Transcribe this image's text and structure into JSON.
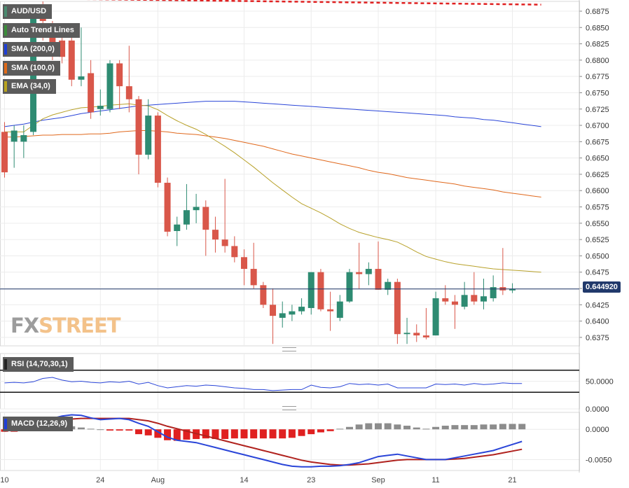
{
  "legends": {
    "main": [
      {
        "label": "AUD/USD",
        "color": "#4a8a6f"
      },
      {
        "label": "Auto Trend Lines",
        "color": "#3a8c3a"
      },
      {
        "label": "SMA (200,0)",
        "color": "#1f3fd6"
      },
      {
        "label": "SMA (100,0)",
        "color": "#e06a18"
      },
      {
        "label": "EMA (34,0)",
        "color": "#b9a31e"
      }
    ],
    "rsi": {
      "label": "RSI (14,70,30,1)",
      "color": "#222222"
    },
    "macd": {
      "label": "MACD (12,26,9)",
      "color": "#1f3fd6"
    }
  },
  "logo": {
    "part1": "FX",
    "part2": "STREET"
  },
  "current_price_label": "0.644920",
  "colors": {
    "up": "#2e8b72",
    "down": "#d9574a",
    "sma200": "#2a45d8",
    "sma100": "#e0681c",
    "ema34": "#b8a12a",
    "trend": "#e02020",
    "rsi_line": "#2a45d8",
    "macd_line": "#2a45d8",
    "signal_line": "#b0221e",
    "hist_neg": "#e02020",
    "hist_pos": "#8c8c8c",
    "price_line": "#21396b"
  },
  "chart_data": [
    {
      "type": "candlestick",
      "title": "AUD/USD",
      "x_tick_labels": [
        {
          "index": 0,
          "label": "10"
        },
        {
          "index": 10,
          "label": "24"
        },
        {
          "index": 16,
          "label": "Aug"
        },
        {
          "index": 25,
          "label": "14"
        },
        {
          "index": 32,
          "label": "23"
        },
        {
          "index": 39,
          "label": "Sep"
        },
        {
          "index": 45,
          "label": "11"
        },
        {
          "index": 53,
          "label": "21"
        }
      ],
      "y_ticks": [
        "0.6375",
        "0.6400",
        "0.6425",
        "0.6450",
        "0.6475",
        "0.6500",
        "0.6525",
        "0.6550",
        "0.6575",
        "0.6600",
        "0.6625",
        "0.6650",
        "0.6675",
        "0.6700",
        "0.6725",
        "0.6750",
        "0.6775",
        "0.6800",
        "0.6825",
        "0.6850",
        "0.6875"
      ],
      "ylim": [
        0.6362,
        0.689
      ],
      "current_price": 0.64492,
      "candles": [
        {
          "o": 0.669,
          "h": 0.6705,
          "l": 0.662,
          "c": 0.6628
        },
        {
          "o": 0.6675,
          "h": 0.67,
          "l": 0.6635,
          "c": 0.6692
        },
        {
          "o": 0.6675,
          "h": 0.67,
          "l": 0.665,
          "c": 0.6685
        },
        {
          "o": 0.669,
          "h": 0.688,
          "l": 0.6685,
          "c": 0.6875
        },
        {
          "o": 0.6875,
          "h": 0.689,
          "l": 0.683,
          "c": 0.686
        },
        {
          "o": 0.685,
          "h": 0.686,
          "l": 0.68,
          "c": 0.6815
        },
        {
          "o": 0.683,
          "h": 0.684,
          "l": 0.6795,
          "c": 0.6805
        },
        {
          "o": 0.683,
          "h": 0.684,
          "l": 0.676,
          "c": 0.677
        },
        {
          "o": 0.677,
          "h": 0.685,
          "l": 0.676,
          "c": 0.6775
        },
        {
          "o": 0.678,
          "h": 0.68,
          "l": 0.671,
          "c": 0.672
        },
        {
          "o": 0.6725,
          "h": 0.6755,
          "l": 0.6715,
          "c": 0.673
        },
        {
          "o": 0.6725,
          "h": 0.68,
          "l": 0.672,
          "c": 0.6795
        },
        {
          "o": 0.6795,
          "h": 0.68,
          "l": 0.6725,
          "c": 0.676
        },
        {
          "o": 0.676,
          "h": 0.6822,
          "l": 0.672,
          "c": 0.674
        },
        {
          "o": 0.674,
          "h": 0.6745,
          "l": 0.6625,
          "c": 0.6655
        },
        {
          "o": 0.6655,
          "h": 0.674,
          "l": 0.6648,
          "c": 0.6715
        },
        {
          "o": 0.6715,
          "h": 0.672,
          "l": 0.6605,
          "c": 0.6612
        },
        {
          "o": 0.6612,
          "h": 0.662,
          "l": 0.653,
          "c": 0.6537
        },
        {
          "o": 0.6538,
          "h": 0.656,
          "l": 0.6515,
          "c": 0.6548
        },
        {
          "o": 0.6548,
          "h": 0.661,
          "l": 0.654,
          "c": 0.657
        },
        {
          "o": 0.657,
          "h": 0.6595,
          "l": 0.655,
          "c": 0.6575
        },
        {
          "o": 0.6575,
          "h": 0.6585,
          "l": 0.65,
          "c": 0.654
        },
        {
          "o": 0.654,
          "h": 0.656,
          "l": 0.6505,
          "c": 0.6525
        },
        {
          "o": 0.6525,
          "h": 0.6618,
          "l": 0.6505,
          "c": 0.6515
        },
        {
          "o": 0.6515,
          "h": 0.653,
          "l": 0.649,
          "c": 0.6498
        },
        {
          "o": 0.6498,
          "h": 0.651,
          "l": 0.6455,
          "c": 0.648
        },
        {
          "o": 0.648,
          "h": 0.652,
          "l": 0.645,
          "c": 0.6455
        },
        {
          "o": 0.6455,
          "h": 0.646,
          "l": 0.642,
          "c": 0.6425
        },
        {
          "o": 0.6425,
          "h": 0.645,
          "l": 0.6365,
          "c": 0.6408
        },
        {
          "o": 0.6405,
          "h": 0.643,
          "l": 0.639,
          "c": 0.6412
        },
        {
          "o": 0.641,
          "h": 0.6425,
          "l": 0.64,
          "c": 0.6415
        },
        {
          "o": 0.6415,
          "h": 0.6435,
          "l": 0.641,
          "c": 0.6422
        },
        {
          "o": 0.642,
          "h": 0.6475,
          "l": 0.641,
          "c": 0.6475
        },
        {
          "o": 0.6475,
          "h": 0.648,
          "l": 0.6415,
          "c": 0.6418
        },
        {
          "o": 0.6418,
          "h": 0.6445,
          "l": 0.6385,
          "c": 0.6415
        },
        {
          "o": 0.6405,
          "h": 0.644,
          "l": 0.64,
          "c": 0.643
        },
        {
          "o": 0.643,
          "h": 0.648,
          "l": 0.6428,
          "c": 0.6475
        },
        {
          "o": 0.6475,
          "h": 0.652,
          "l": 0.645,
          "c": 0.6472
        },
        {
          "o": 0.6472,
          "h": 0.649,
          "l": 0.6455,
          "c": 0.648
        },
        {
          "o": 0.648,
          "h": 0.6522,
          "l": 0.6448,
          "c": 0.6448
        },
        {
          "o": 0.6448,
          "h": 0.6465,
          "l": 0.644,
          "c": 0.646
        },
        {
          "o": 0.646,
          "h": 0.6465,
          "l": 0.6365,
          "c": 0.638
        },
        {
          "o": 0.638,
          "h": 0.6405,
          "l": 0.6365,
          "c": 0.6382
        },
        {
          "o": 0.6382,
          "h": 0.6395,
          "l": 0.6368,
          "c": 0.6378
        },
        {
          "o": 0.6378,
          "h": 0.642,
          "l": 0.6372,
          "c": 0.6375
        },
        {
          "o": 0.6378,
          "h": 0.6445,
          "l": 0.6378,
          "c": 0.6435
        },
        {
          "o": 0.6435,
          "h": 0.6455,
          "l": 0.6425,
          "c": 0.643
        },
        {
          "o": 0.643,
          "h": 0.644,
          "l": 0.6388,
          "c": 0.6425
        },
        {
          "o": 0.6422,
          "h": 0.646,
          "l": 0.6418,
          "c": 0.644
        },
        {
          "o": 0.644,
          "h": 0.6475,
          "l": 0.6425,
          "c": 0.643
        },
        {
          "o": 0.643,
          "h": 0.6465,
          "l": 0.6418,
          "c": 0.6438
        },
        {
          "o": 0.6435,
          "h": 0.647,
          "l": 0.643,
          "c": 0.6452
        },
        {
          "o": 0.6452,
          "h": 0.6512,
          "l": 0.644,
          "c": 0.6447
        },
        {
          "o": 0.6447,
          "h": 0.6458,
          "l": 0.6443,
          "c": 0.6449
        }
      ],
      "sma200": [
        0.6698,
        0.67,
        0.6702,
        0.6705,
        0.6708,
        0.671,
        0.6712,
        0.6715,
        0.6718,
        0.672,
        0.6722,
        0.6724,
        0.6726,
        0.6728,
        0.673,
        0.6731,
        0.6732,
        0.6733,
        0.6734,
        0.6735,
        0.6736,
        0.6737,
        0.6737,
        0.6737,
        0.6737,
        0.6736,
        0.6735,
        0.6734,
        0.6733,
        0.6732,
        0.6731,
        0.673,
        0.6729,
        0.6728,
        0.6727,
        0.6726,
        0.6725,
        0.6724,
        0.6723,
        0.6722,
        0.6721,
        0.672,
        0.6719,
        0.6718,
        0.6717,
        0.6716,
        0.6715,
        0.6713,
        0.6712,
        0.6711,
        0.6709,
        0.6708,
        0.6706,
        0.6704,
        0.6702,
        0.67,
        0.6698
      ],
      "sma100": [
        0.6682,
        0.6682,
        0.6683,
        0.6684,
        0.6685,
        0.6685,
        0.6686,
        0.6686,
        0.6686,
        0.6687,
        0.6687,
        0.6688,
        0.669,
        0.6691,
        0.6692,
        0.6692,
        0.6691,
        0.669,
        0.6688,
        0.6687,
        0.6686,
        0.6684,
        0.6682,
        0.668,
        0.6677,
        0.6674,
        0.6671,
        0.6668,
        0.6664,
        0.666,
        0.6656,
        0.6653,
        0.665,
        0.6647,
        0.6644,
        0.6641,
        0.6638,
        0.6635,
        0.6631,
        0.6628,
        0.6626,
        0.6623,
        0.662,
        0.6618,
        0.6616,
        0.6614,
        0.6612,
        0.661,
        0.6607,
        0.6605,
        0.6603,
        0.6601,
        0.6598,
        0.6596,
        0.6594,
        0.6592,
        0.659
      ],
      "ema34": [
        0.669,
        0.669,
        0.669,
        0.67,
        0.671,
        0.6716,
        0.672,
        0.6724,
        0.6727,
        0.6728,
        0.6729,
        0.6731,
        0.6732,
        0.6733,
        0.6731,
        0.673,
        0.6724,
        0.6715,
        0.6707,
        0.67,
        0.6694,
        0.6686,
        0.6677,
        0.6668,
        0.6658,
        0.6647,
        0.6636,
        0.6624,
        0.6612,
        0.6601,
        0.659,
        0.658,
        0.6573,
        0.6566,
        0.6558,
        0.6549,
        0.6542,
        0.6536,
        0.6532,
        0.6528,
        0.6525,
        0.6521,
        0.6514,
        0.6506,
        0.6499,
        0.6495,
        0.6491,
        0.6488,
        0.6486,
        0.6484,
        0.6482,
        0.648,
        0.6479,
        0.6478,
        0.6477,
        0.6476,
        0.6475
      ],
      "trend_line": [
        [
          0,
          0.6895
        ],
        [
          56,
          0.6885
        ]
      ]
    },
    {
      "type": "line",
      "title": "RSI (14,70,30,1)",
      "y_ticks": [
        "50.0000",
        "0.0000"
      ],
      "ylim": [
        0,
        100
      ],
      "levels": [
        70,
        30
      ],
      "rsi": [
        47,
        48,
        47,
        49,
        55,
        57,
        52,
        49,
        50,
        48,
        47,
        49,
        48,
        50,
        45,
        48,
        42,
        38,
        40,
        42,
        41,
        43,
        42,
        40,
        38,
        37,
        35,
        35,
        33,
        34,
        35,
        35,
        43,
        39,
        38,
        40,
        46,
        44,
        45,
        43,
        45,
        38,
        38,
        38,
        38,
        45,
        44,
        45,
        43,
        46,
        44,
        45,
        47,
        46,
        46
      ]
    },
    {
      "type": "bar",
      "title": "MACD (12,26,9)",
      "y_ticks": [
        "0.0000",
        "-0.0050"
      ],
      "ylim": [
        -0.0068,
        0.0028
      ],
      "macd": [
        -0.0002,
        0.0002,
        0.0006,
        0.001,
        0.0014,
        0.0018,
        0.0022,
        0.0024,
        0.0023,
        0.0019,
        0.0016,
        0.0017,
        0.0018,
        0.0016,
        0.001,
        0.0005,
        -0.0004,
        -0.0013,
        -0.0018,
        -0.002,
        -0.0022,
        -0.0026,
        -0.003,
        -0.0034,
        -0.0038,
        -0.0042,
        -0.0046,
        -0.005,
        -0.0054,
        -0.0058,
        -0.0061,
        -0.0062,
        -0.0062,
        -0.0061,
        -0.0061,
        -0.006,
        -0.0058,
        -0.0055,
        -0.005,
        -0.0045,
        -0.0043,
        -0.0041,
        -0.0044,
        -0.0047,
        -0.005,
        -0.005,
        -0.005,
        -0.0047,
        -0.0044,
        -0.0041,
        -0.0038,
        -0.0035,
        -0.003,
        -0.0025,
        -0.002
      ],
      "signal": [
        -0.0003,
        -0.0001,
        0.0002,
        0.0005,
        0.0008,
        0.0011,
        0.0014,
        0.0017,
        0.0018,
        0.0018,
        0.0018,
        0.0018,
        0.0018,
        0.0018,
        0.0016,
        0.0014,
        0.001,
        0.0005,
        0.0001,
        -0.0003,
        -0.0007,
        -0.0011,
        -0.0015,
        -0.0019,
        -0.0023,
        -0.0027,
        -0.0031,
        -0.0035,
        -0.0039,
        -0.0043,
        -0.0047,
        -0.0051,
        -0.0054,
        -0.0056,
        -0.0058,
        -0.0059,
        -0.0059,
        -0.0058,
        -0.0057,
        -0.0055,
        -0.0053,
        -0.0051,
        -0.005,
        -0.005,
        -0.005,
        -0.005,
        -0.005,
        -0.0049,
        -0.0048,
        -0.0046,
        -0.0044,
        -0.0042,
        -0.0039,
        -0.0036,
        -0.0033
      ],
      "histogram": [
        -0.0004,
        -0.0004,
        0.0001,
        0.0006,
        0.0006,
        0.0006,
        0.0006,
        0.0005,
        0.0003,
        0.0001,
        0.0,
        -0.0002,
        -0.0002,
        -0.0002,
        -0.0008,
        -0.001,
        -0.0014,
        -0.0018,
        -0.0019,
        -0.0017,
        -0.0016,
        -0.0015,
        -0.0016,
        -0.0016,
        -0.0015,
        -0.0015,
        -0.0015,
        -0.0015,
        -0.0015,
        -0.0015,
        -0.0014,
        -0.0011,
        -0.0008,
        -0.0005,
        -0.0003,
        0.0001,
        0.0004,
        0.0008,
        0.001,
        0.001,
        0.001,
        0.0008,
        0.0006,
        0.0003,
        0.0001,
        0.0004,
        0.0006,
        0.0007,
        0.0007,
        0.0007,
        0.0008,
        0.0008,
        0.0009,
        0.0009,
        0.0009
      ]
    }
  ]
}
